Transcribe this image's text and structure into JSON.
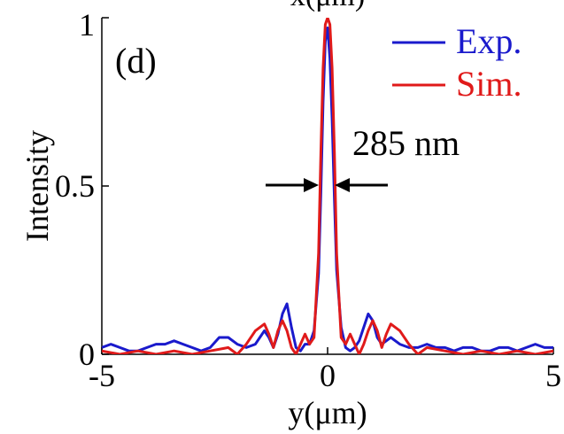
{
  "chart_data": {
    "type": "line",
    "title_fragment": "x(μm)",
    "panel_label": "(d)",
    "xlabel": "y(μm)",
    "ylabel": "Intensity",
    "xlim": [
      -5,
      5
    ],
    "ylim": [
      0,
      1
    ],
    "xticks": [
      {
        "value": -5,
        "label": "-5"
      },
      {
        "value": 0,
        "label": "0"
      },
      {
        "value": 5,
        "label": "5"
      }
    ],
    "yticks": [
      {
        "value": 0,
        "label": "0"
      },
      {
        "value": 0.5,
        "label": "0.5"
      },
      {
        "value": 1,
        "label": "1"
      }
    ],
    "annotation": {
      "text": "285 nm",
      "fwhm_um": 0.285,
      "at_y": 0.5
    },
    "series": [
      {
        "name": "Exp.",
        "color": "#1a1acc",
        "x": [
          -5.0,
          -4.8,
          -4.6,
          -4.4,
          -4.2,
          -4.0,
          -3.8,
          -3.6,
          -3.4,
          -3.2,
          -3.0,
          -2.8,
          -2.6,
          -2.4,
          -2.2,
          -2.0,
          -1.8,
          -1.6,
          -1.5,
          -1.4,
          -1.3,
          -1.2,
          -1.1,
          -1.0,
          -0.9,
          -0.8,
          -0.7,
          -0.6,
          -0.5,
          -0.4,
          -0.3,
          -0.2,
          -0.15,
          -0.1,
          -0.05,
          0.0,
          0.05,
          0.1,
          0.15,
          0.2,
          0.3,
          0.4,
          0.5,
          0.6,
          0.7,
          0.8,
          0.9,
          1.0,
          1.1,
          1.2,
          1.3,
          1.4,
          1.5,
          1.6,
          1.8,
          2.0,
          2.2,
          2.4,
          2.6,
          2.8,
          3.0,
          3.2,
          3.4,
          3.6,
          3.8,
          4.0,
          4.2,
          4.4,
          4.6,
          4.8,
          5.0
        ],
        "y": [
          0.02,
          0.03,
          0.02,
          0.01,
          0.01,
          0.02,
          0.03,
          0.03,
          0.04,
          0.03,
          0.02,
          0.01,
          0.02,
          0.05,
          0.05,
          0.03,
          0.02,
          0.03,
          0.05,
          0.07,
          0.05,
          0.02,
          0.06,
          0.12,
          0.15,
          0.08,
          0.02,
          0.01,
          0.03,
          0.03,
          0.07,
          0.24,
          0.48,
          0.75,
          0.93,
          0.97,
          0.88,
          0.7,
          0.46,
          0.25,
          0.08,
          0.02,
          0.01,
          0.02,
          0.04,
          0.08,
          0.12,
          0.1,
          0.05,
          0.03,
          0.04,
          0.05,
          0.04,
          0.03,
          0.02,
          0.02,
          0.03,
          0.02,
          0.02,
          0.01,
          0.02,
          0.02,
          0.01,
          0.01,
          0.02,
          0.02,
          0.01,
          0.02,
          0.03,
          0.02,
          0.02
        ]
      },
      {
        "name": "Sim.",
        "color": "#e01a1a",
        "x": [
          -5.0,
          -4.6,
          -4.2,
          -3.8,
          -3.4,
          -3.0,
          -2.6,
          -2.2,
          -2.0,
          -1.8,
          -1.6,
          -1.4,
          -1.3,
          -1.2,
          -1.1,
          -1.0,
          -0.9,
          -0.8,
          -0.7,
          -0.6,
          -0.5,
          -0.4,
          -0.3,
          -0.2,
          -0.15,
          -0.1,
          -0.05,
          0.0,
          0.05,
          0.1,
          0.15,
          0.2,
          0.3,
          0.4,
          0.5,
          0.6,
          0.7,
          0.8,
          0.9,
          1.0,
          1.1,
          1.2,
          1.3,
          1.4,
          1.6,
          1.8,
          2.0,
          2.2,
          2.6,
          3.0,
          3.4,
          3.8,
          4.2,
          4.6,
          5.0
        ],
        "y": [
          0.01,
          0.0,
          0.01,
          0.0,
          0.01,
          0.0,
          0.01,
          0.02,
          0.0,
          0.03,
          0.07,
          0.09,
          0.06,
          0.02,
          0.07,
          0.1,
          0.07,
          0.02,
          0.0,
          0.03,
          0.06,
          0.03,
          0.05,
          0.3,
          0.6,
          0.85,
          0.98,
          1.0,
          0.98,
          0.85,
          0.6,
          0.3,
          0.05,
          0.03,
          0.06,
          0.03,
          0.0,
          0.03,
          0.07,
          0.1,
          0.07,
          0.02,
          0.06,
          0.09,
          0.07,
          0.03,
          0.0,
          0.02,
          0.01,
          0.0,
          0.01,
          0.0,
          0.01,
          0.0,
          0.01
        ]
      }
    ]
  }
}
